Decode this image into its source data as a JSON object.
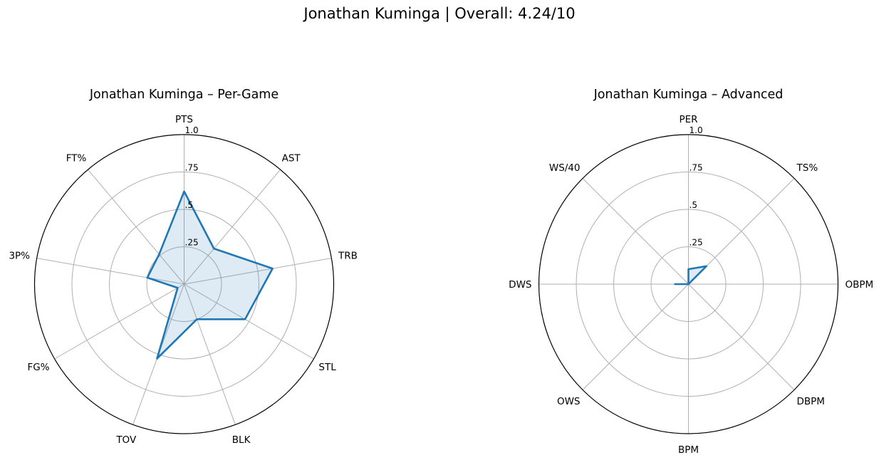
{
  "title": "Jonathan Kuminga | Overall: 4.24/10",
  "colors": {
    "series_line": "#1f77b4",
    "series_fill": "#1f77b4",
    "grid": "#b0b0b0",
    "frame": "#000000"
  },
  "chart_data": [
    {
      "type": "radar",
      "title": "Jonathan Kuminga – Per-Game",
      "axes": [
        "PTS",
        "AST",
        "TRB",
        "STL",
        "BLK",
        "TOV",
        "FG%",
        "3P%",
        "FT%"
      ],
      "rlim": [
        0,
        1
      ],
      "rticks": [
        0.25,
        0.5,
        0.75,
        1.0
      ],
      "rtick_labels": [
        ".25",
        ".5",
        ".75",
        "1.0"
      ],
      "grid": true,
      "series": [
        {
          "values": [
            0.62,
            0.31,
            0.6,
            0.47,
            0.25,
            0.53,
            0.05,
            0.25,
            0.26
          ],
          "filled": true
        }
      ]
    },
    {
      "type": "radar",
      "title": "Jonathan Kuminga – Advanced",
      "axes": [
        "PER",
        "TS%",
        "OBPM",
        "DBPM",
        "BPM",
        "OWS",
        "DWS",
        "WS/40"
      ],
      "rlim": [
        0,
        1
      ],
      "rticks": [
        0.25,
        0.5,
        0.75,
        1.0
      ],
      "rtick_labels": [
        ".25",
        ".5",
        ".75",
        "1.0"
      ],
      "grid": true,
      "series": [
        {
          "values": [
            0.1,
            0.17,
            0.0,
            0.0,
            0.0,
            0.0,
            0.09,
            0.0
          ],
          "filled": true
        }
      ]
    }
  ]
}
